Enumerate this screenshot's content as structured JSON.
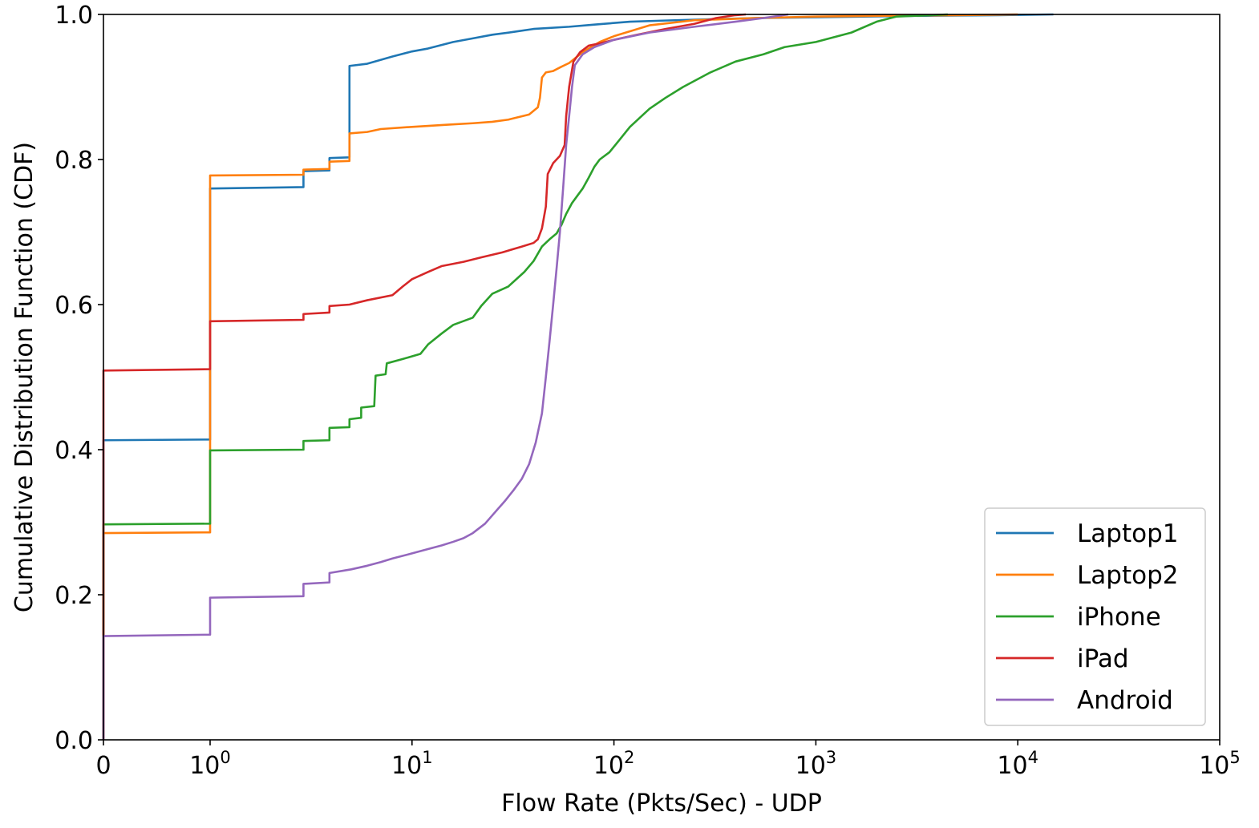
{
  "chart_data": {
    "type": "line",
    "xlabel": "Flow Rate (Pkts/Sec) - UDP",
    "ylabel": "Cumulative Distribution Function (CDF)",
    "xscale": "symlog",
    "xlim": [
      0,
      100000
    ],
    "ylim": [
      0,
      1.0
    ],
    "grid": false,
    "legend_position": "lower-right",
    "x_ticks": [
      {
        "value": 0,
        "base": "0",
        "exp": ""
      },
      {
        "value": 1,
        "base": "10",
        "exp": "0"
      },
      {
        "value": 10,
        "base": "10",
        "exp": "1"
      },
      {
        "value": 100,
        "base": "10",
        "exp": "2"
      },
      {
        "value": 1000,
        "base": "10",
        "exp": "3"
      },
      {
        "value": 10000,
        "base": "10",
        "exp": "4"
      },
      {
        "value": 100000,
        "base": "10",
        "exp": "5"
      }
    ],
    "y_ticks": [
      {
        "value": 0.0,
        "label": "0.0"
      },
      {
        "value": 0.2,
        "label": "0.2"
      },
      {
        "value": 0.4,
        "label": "0.4"
      },
      {
        "value": 0.6,
        "label": "0.6"
      },
      {
        "value": 0.8,
        "label": "0.8"
      },
      {
        "value": 1.0,
        "label": "1.0"
      }
    ],
    "series": [
      {
        "name": "Laptop1",
        "color": "#1f77b4",
        "points": [
          [
            0,
            0
          ],
          [
            0,
            0.413
          ],
          [
            1,
            0.414
          ],
          [
            1,
            0.76
          ],
          [
            2.9,
            0.762
          ],
          [
            2.9,
            0.784
          ],
          [
            3.9,
            0.785
          ],
          [
            3.9,
            0.802
          ],
          [
            4.9,
            0.803
          ],
          [
            4.9,
            0.929
          ],
          [
            6,
            0.932
          ],
          [
            8,
            0.942
          ],
          [
            10,
            0.949
          ],
          [
            12,
            0.953
          ],
          [
            16,
            0.962
          ],
          [
            20,
            0.967
          ],
          [
            25,
            0.972
          ],
          [
            32,
            0.976
          ],
          [
            40,
            0.98
          ],
          [
            60,
            0.983
          ],
          [
            80,
            0.986
          ],
          [
            120,
            0.99
          ],
          [
            200,
            0.992
          ],
          [
            500,
            0.995
          ],
          [
            1000,
            0.996
          ],
          [
            3000,
            0.998
          ],
          [
            8000,
            0.999
          ],
          [
            15000,
            1.0
          ]
        ]
      },
      {
        "name": "Laptop2",
        "color": "#ff7f0e",
        "points": [
          [
            0,
            0
          ],
          [
            0,
            0.285
          ],
          [
            1,
            0.286
          ],
          [
            1,
            0.778
          ],
          [
            2.9,
            0.779
          ],
          [
            2.9,
            0.786
          ],
          [
            3.9,
            0.787
          ],
          [
            3.9,
            0.797
          ],
          [
            4.9,
            0.798
          ],
          [
            4.9,
            0.836
          ],
          [
            6,
            0.838
          ],
          [
            7,
            0.842
          ],
          [
            10,
            0.845
          ],
          [
            15,
            0.848
          ],
          [
            20,
            0.85
          ],
          [
            25,
            0.852
          ],
          [
            30,
            0.855
          ],
          [
            38,
            0.862
          ],
          [
            42,
            0.872
          ],
          [
            43,
            0.885
          ],
          [
            44,
            0.913
          ],
          [
            46,
            0.92
          ],
          [
            50,
            0.922
          ],
          [
            55,
            0.928
          ],
          [
            60,
            0.933
          ],
          [
            70,
            0.948
          ],
          [
            85,
            0.962
          ],
          [
            100,
            0.97
          ],
          [
            150,
            0.985
          ],
          [
            250,
            0.992
          ],
          [
            500,
            0.995
          ],
          [
            1000,
            0.997
          ],
          [
            2000,
            0.998
          ],
          [
            5000,
            0.999
          ],
          [
            10000,
            1.0
          ]
        ]
      },
      {
        "name": "iPhone",
        "color": "#2ca02c",
        "points": [
          [
            0,
            0
          ],
          [
            0,
            0.297
          ],
          [
            1,
            0.298
          ],
          [
            1,
            0.399
          ],
          [
            2.9,
            0.4
          ],
          [
            2.9,
            0.412
          ],
          [
            3.9,
            0.413
          ],
          [
            3.9,
            0.43
          ],
          [
            4.9,
            0.431
          ],
          [
            4.9,
            0.442
          ],
          [
            5.6,
            0.444
          ],
          [
            5.6,
            0.458
          ],
          [
            6.5,
            0.46
          ],
          [
            6.6,
            0.502
          ],
          [
            7.4,
            0.504
          ],
          [
            7.5,
            0.519
          ],
          [
            9,
            0.525
          ],
          [
            11,
            0.532
          ],
          [
            12,
            0.545
          ],
          [
            14,
            0.56
          ],
          [
            16,
            0.572
          ],
          [
            20,
            0.582
          ],
          [
            22,
            0.598
          ],
          [
            25,
            0.615
          ],
          [
            30,
            0.625
          ],
          [
            36,
            0.645
          ],
          [
            40,
            0.66
          ],
          [
            44,
            0.68
          ],
          [
            48,
            0.69
          ],
          [
            52,
            0.698
          ],
          [
            55,
            0.71
          ],
          [
            58,
            0.725
          ],
          [
            62,
            0.74
          ],
          [
            70,
            0.76
          ],
          [
            75,
            0.775
          ],
          [
            80,
            0.79
          ],
          [
            85,
            0.8
          ],
          [
            95,
            0.81
          ],
          [
            105,
            0.825
          ],
          [
            120,
            0.845
          ],
          [
            150,
            0.87
          ],
          [
            180,
            0.885
          ],
          [
            220,
            0.9
          ],
          [
            300,
            0.92
          ],
          [
            400,
            0.935
          ],
          [
            550,
            0.945
          ],
          [
            700,
            0.955
          ],
          [
            1000,
            0.962
          ],
          [
            1500,
            0.975
          ],
          [
            2000,
            0.99
          ],
          [
            2500,
            0.997
          ],
          [
            4500,
            1.0
          ]
        ]
      },
      {
        "name": "iPad",
        "color": "#d62728",
        "points": [
          [
            0,
            0
          ],
          [
            0,
            0.509
          ],
          [
            1,
            0.511
          ],
          [
            1,
            0.577
          ],
          [
            2.9,
            0.579
          ],
          [
            2.9,
            0.587
          ],
          [
            3.9,
            0.589
          ],
          [
            3.9,
            0.598
          ],
          [
            4.9,
            0.6
          ],
          [
            6,
            0.606
          ],
          [
            8,
            0.613
          ],
          [
            9,
            0.625
          ],
          [
            10,
            0.635
          ],
          [
            12,
            0.645
          ],
          [
            14,
            0.653
          ],
          [
            18,
            0.659
          ],
          [
            22,
            0.665
          ],
          [
            28,
            0.672
          ],
          [
            35,
            0.68
          ],
          [
            40,
            0.685
          ],
          [
            42,
            0.69
          ],
          [
            44,
            0.705
          ],
          [
            46,
            0.735
          ],
          [
            47,
            0.78
          ],
          [
            50,
            0.795
          ],
          [
            54,
            0.805
          ],
          [
            57,
            0.82
          ],
          [
            58,
            0.86
          ],
          [
            60,
            0.9
          ],
          [
            63,
            0.935
          ],
          [
            68,
            0.948
          ],
          [
            75,
            0.957
          ],
          [
            85,
            0.96
          ],
          [
            100,
            0.965
          ],
          [
            130,
            0.972
          ],
          [
            180,
            0.98
          ],
          [
            250,
            0.987
          ],
          [
            320,
            0.995
          ],
          [
            400,
            0.999
          ],
          [
            450,
            1.0
          ]
        ]
      },
      {
        "name": "Android",
        "color": "#9467bd",
        "points": [
          [
            0,
            0
          ],
          [
            0,
            0.143
          ],
          [
            1,
            0.145
          ],
          [
            1,
            0.196
          ],
          [
            2.9,
            0.198
          ],
          [
            2.9,
            0.215
          ],
          [
            3.9,
            0.217
          ],
          [
            3.9,
            0.23
          ],
          [
            5,
            0.235
          ],
          [
            6,
            0.24
          ],
          [
            7,
            0.245
          ],
          [
            8,
            0.25
          ],
          [
            10,
            0.257
          ],
          [
            12,
            0.263
          ],
          [
            14,
            0.268
          ],
          [
            16,
            0.273
          ],
          [
            18,
            0.278
          ],
          [
            20,
            0.285
          ],
          [
            23,
            0.298
          ],
          [
            26,
            0.315
          ],
          [
            29,
            0.33
          ],
          [
            32,
            0.345
          ],
          [
            35,
            0.36
          ],
          [
            38,
            0.38
          ],
          [
            41,
            0.41
          ],
          [
            44,
            0.45
          ],
          [
            46,
            0.5
          ],
          [
            48,
            0.55
          ],
          [
            50,
            0.6
          ],
          [
            52,
            0.65
          ],
          [
            54,
            0.7
          ],
          [
            56,
            0.76
          ],
          [
            58,
            0.82
          ],
          [
            60,
            0.86
          ],
          [
            62,
            0.9
          ],
          [
            64,
            0.93
          ],
          [
            70,
            0.945
          ],
          [
            80,
            0.955
          ],
          [
            100,
            0.965
          ],
          [
            150,
            0.975
          ],
          [
            250,
            0.983
          ],
          [
            400,
            0.99
          ],
          [
            550,
            0.995
          ],
          [
            730,
            1.0
          ]
        ]
      }
    ]
  }
}
